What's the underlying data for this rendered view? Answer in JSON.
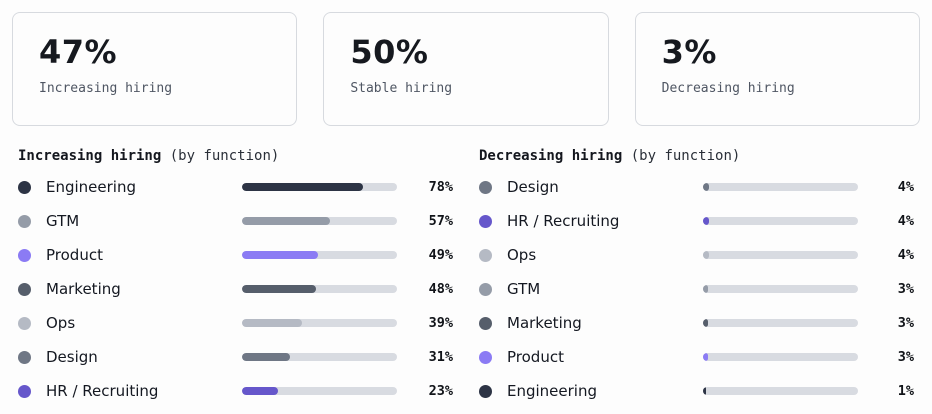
{
  "summary_cards": [
    {
      "value": "47%",
      "label": "Increasing hiring"
    },
    {
      "value": "50%",
      "label": "Stable hiring"
    },
    {
      "value": "3%",
      "label": "Decreasing hiring"
    }
  ],
  "chart_data": [
    {
      "type": "bar",
      "orientation": "horizontal",
      "unit": "%",
      "value_range": [
        0,
        100
      ],
      "title_bold": "Increasing hiring",
      "title_suffix": "(by function)",
      "title": "Increasing hiring (by function)",
      "rows": [
        {
          "label": "Engineering",
          "value": 78,
          "display": "78%",
          "color": "#2d3445"
        },
        {
          "label": "GTM",
          "value": 57,
          "display": "57%",
          "color": "#959ca8"
        },
        {
          "label": "Product",
          "value": 49,
          "display": "49%",
          "color": "#8b7bf4"
        },
        {
          "label": "Marketing",
          "value": 48,
          "display": "48%",
          "color": "#565e6b"
        },
        {
          "label": "Ops",
          "value": 39,
          "display": "39%",
          "color": "#b5bac4"
        },
        {
          "label": "Design",
          "value": 31,
          "display": "31%",
          "color": "#6f7785"
        },
        {
          "label": "HR / Recruiting",
          "value": 23,
          "display": "23%",
          "color": "#6657cb"
        }
      ]
    },
    {
      "type": "bar",
      "orientation": "horizontal",
      "unit": "%",
      "value_range": [
        0,
        100
      ],
      "title_bold": "Decreasing hiring",
      "title_suffix": "(by function)",
      "title": "Decreasing hiring (by function)",
      "rows": [
        {
          "label": "Design",
          "value": 4,
          "display": "4%",
          "color": "#6f7785"
        },
        {
          "label": "HR / Recruiting",
          "value": 4,
          "display": "4%",
          "color": "#6657cb"
        },
        {
          "label": "Ops",
          "value": 4,
          "display": "4%",
          "color": "#b5bac4"
        },
        {
          "label": "GTM",
          "value": 3,
          "display": "3%",
          "color": "#959ca8"
        },
        {
          "label": "Marketing",
          "value": 3,
          "display": "3%",
          "color": "#565e6b"
        },
        {
          "label": "Product",
          "value": 3,
          "display": "3%",
          "color": "#8b7bf4"
        },
        {
          "label": "Engineering",
          "value": 1,
          "display": "1%",
          "color": "#2d3445"
        }
      ]
    }
  ]
}
